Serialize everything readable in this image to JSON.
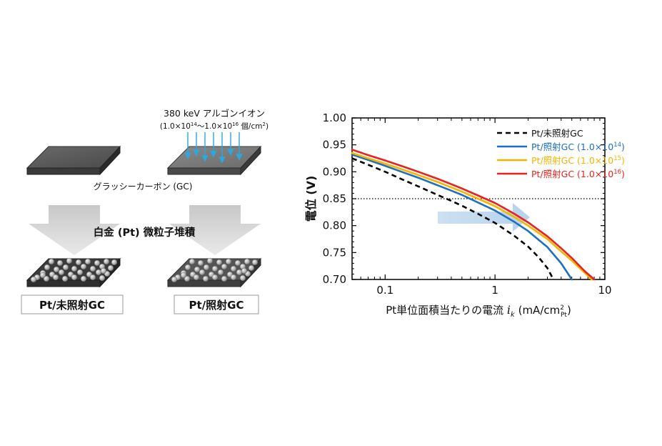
{
  "diagram": {
    "ion_beam_label": "380 keV アルゴンイオン",
    "dose_range": {
      "open": "(1.0×10",
      "exp1": "14",
      "mid": "～1.0×10",
      "exp2": "16",
      "unit": " 個/cm",
      "unit_exp": "2",
      "close": ")"
    },
    "substrate_label": "グラッシーカーボン (GC)",
    "process_label": "白金 (Pt) 微粒子堆積",
    "sample_left_label": "Pt/未照射GC",
    "sample_right_label": "Pt/照射GC"
  },
  "chart_data": {
    "type": "line",
    "xscale": "log",
    "xlim": [
      0.05,
      10
    ],
    "ylim": [
      0.7,
      1.0
    ],
    "xticks": [
      {
        "v": 0.1,
        "label": "0.1"
      },
      {
        "v": 1,
        "label": "1"
      },
      {
        "v": 10,
        "label": "10"
      }
    ],
    "yticks": [
      {
        "v": 1.0,
        "label": "1.00"
      },
      {
        "v": 0.95,
        "label": "0.95"
      },
      {
        "v": 0.9,
        "label": "0.90"
      },
      {
        "v": 0.85,
        "label": "0.85"
      },
      {
        "v": 0.8,
        "label": "0.80"
      },
      {
        "v": 0.75,
        "label": "0.75"
      },
      {
        "v": 0.7,
        "label": "0.70"
      }
    ],
    "ylabel": "電位 (V)",
    "xlabel": {
      "main": "Pt単位面積当たりの電流 ",
      "var": "i",
      "var_sub": "k",
      "unit": " (mA/cm",
      "unit_sup": "2",
      "unit_sub": "Pt",
      "close": ")"
    },
    "reference_line": {
      "y": 0.85,
      "style": "dotted"
    },
    "legend_position": "top-right",
    "series": [
      {
        "name": "Pt/未照射GC",
        "legend": {
          "text": "Pt/未照射GC",
          "exp": ""
        },
        "color": "#000000",
        "dash": "dashed",
        "points": [
          [
            0.05,
            0.925
          ],
          [
            0.07,
            0.913
          ],
          [
            0.1,
            0.9
          ],
          [
            0.15,
            0.884
          ],
          [
            0.2,
            0.873
          ],
          [
            0.3,
            0.857
          ],
          [
            0.4,
            0.846
          ],
          [
            0.5,
            0.837
          ],
          [
            0.7,
            0.822
          ],
          [
            1.0,
            0.805
          ],
          [
            1.5,
            0.781
          ],
          [
            2.0,
            0.761
          ],
          [
            2.5,
            0.741
          ],
          [
            3.0,
            0.721
          ],
          [
            3.4,
            0.7
          ]
        ]
      },
      {
        "name": "Pt/照射GC (1.0×1014)",
        "legend": {
          "text": "Pt/照射GC (1.0×10",
          "exp": "14",
          "close": ")"
        },
        "color": "#1f6fc0",
        "dash": "solid",
        "points": [
          [
            0.05,
            0.932
          ],
          [
            0.07,
            0.922
          ],
          [
            0.1,
            0.911
          ],
          [
            0.15,
            0.898
          ],
          [
            0.2,
            0.889
          ],
          [
            0.3,
            0.875
          ],
          [
            0.4,
            0.865
          ],
          [
            0.5,
            0.857
          ],
          [
            0.7,
            0.843
          ],
          [
            1.0,
            0.828
          ],
          [
            1.5,
            0.807
          ],
          [
            2.0,
            0.79
          ],
          [
            3.0,
            0.76
          ],
          [
            4.0,
            0.73
          ],
          [
            5.0,
            0.7
          ]
        ]
      },
      {
        "name": "Pt/照射GC (1.0×1015)",
        "legend": {
          "text": "Pt/照射GC (1.0×10",
          "exp": "15",
          "close": ")"
        },
        "color": "#f5b400",
        "dash": "solid",
        "points": [
          [
            0.05,
            0.935
          ],
          [
            0.07,
            0.925
          ],
          [
            0.1,
            0.915
          ],
          [
            0.15,
            0.903
          ],
          [
            0.2,
            0.894
          ],
          [
            0.3,
            0.881
          ],
          [
            0.4,
            0.871
          ],
          [
            0.5,
            0.863
          ],
          [
            0.7,
            0.85
          ],
          [
            1.0,
            0.836
          ],
          [
            1.5,
            0.816
          ],
          [
            2.0,
            0.8
          ],
          [
            3.0,
            0.775
          ],
          [
            4.0,
            0.752
          ],
          [
            5.0,
            0.735
          ],
          [
            6.5,
            0.713
          ],
          [
            7.6,
            0.7
          ]
        ]
      },
      {
        "name": "Pt/照射GC (1.0×1016)",
        "legend": {
          "text": "Pt/照射GC (1.0×10",
          "exp": "16",
          "close": ")"
        },
        "color": "#e8221e",
        "dash": "solid",
        "points": [
          [
            0.05,
            0.941
          ],
          [
            0.07,
            0.931
          ],
          [
            0.1,
            0.921
          ],
          [
            0.15,
            0.909
          ],
          [
            0.2,
            0.9
          ],
          [
            0.3,
            0.887
          ],
          [
            0.4,
            0.877
          ],
          [
            0.5,
            0.869
          ],
          [
            0.7,
            0.856
          ],
          [
            1.0,
            0.842
          ],
          [
            1.5,
            0.822
          ],
          [
            2.0,
            0.806
          ],
          [
            3.0,
            0.78
          ],
          [
            4.0,
            0.758
          ],
          [
            5.0,
            0.74
          ],
          [
            6.5,
            0.716
          ],
          [
            8.0,
            0.7
          ]
        ]
      }
    ]
  }
}
